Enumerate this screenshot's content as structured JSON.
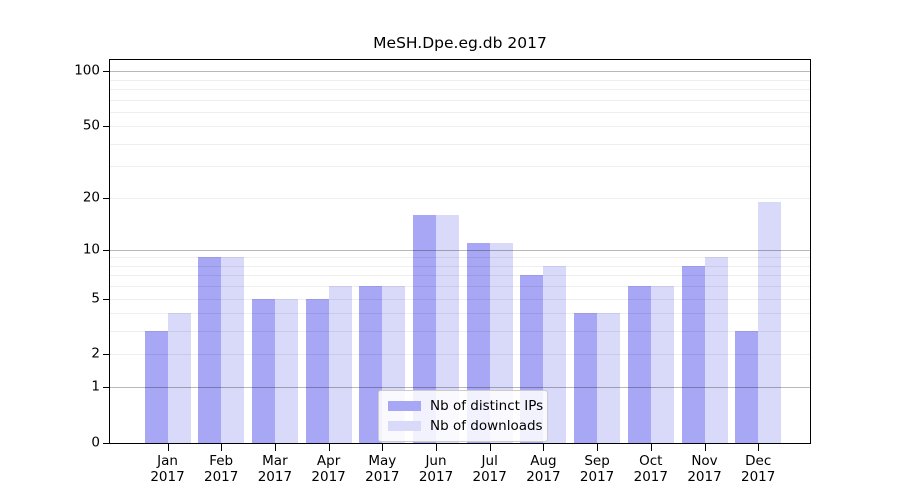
{
  "chart_data": {
    "type": "bar",
    "title": "MeSH.Dpe.eg.db 2017",
    "categories": [
      "Jan",
      "Feb",
      "Mar",
      "Apr",
      "May",
      "Jun",
      "Jul",
      "Aug",
      "Sep",
      "Oct",
      "Nov",
      "Dec"
    ],
    "category_year": "2017",
    "series": [
      {
        "name": "Nb of distinct IPs",
        "color": "#a7a7f5",
        "values": [
          3,
          9,
          5,
          5,
          6,
          16,
          11,
          7,
          4,
          6,
          8,
          3
        ]
      },
      {
        "name": "Nb of downloads",
        "color": "#d9d9f9",
        "values": [
          4,
          9,
          5,
          6,
          6,
          16,
          11,
          8,
          4,
          6,
          9,
          19
        ]
      }
    ],
    "xlabel": "",
    "ylabel": "",
    "yscale": "log1p",
    "ylim": [
      0,
      115
    ],
    "y_ticks": [
      0,
      1,
      2,
      5,
      10,
      20,
      50,
      100
    ],
    "gridlines": {
      "major": [
        1,
        10,
        100
      ],
      "minor": [
        2,
        3,
        4,
        5,
        6,
        7,
        8,
        9,
        20,
        30,
        40,
        50,
        60,
        70,
        80,
        90
      ],
      "major_color": "rgba(0,0,0,0.28)",
      "minor_color": "rgba(0,0,0,0.065)"
    },
    "legend": {
      "position": "lower center",
      "entries": [
        "Nb of distinct IPs",
        "Nb of downloads"
      ]
    },
    "frame_color": "#000000",
    "background": "#ffffff"
  }
}
